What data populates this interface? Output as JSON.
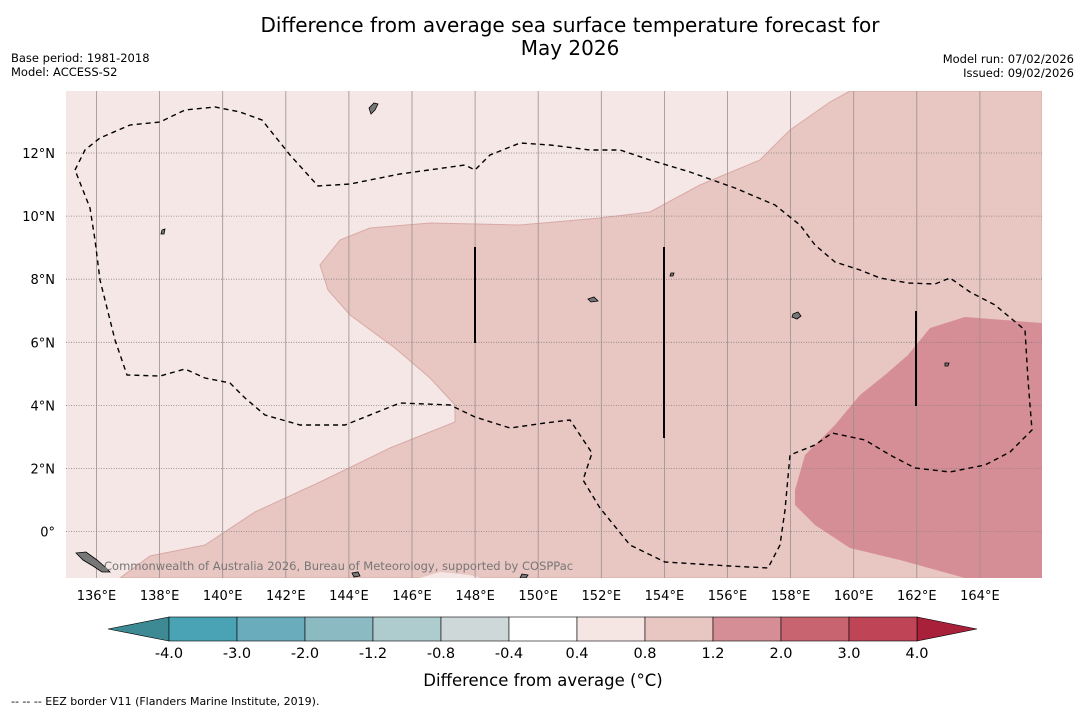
{
  "title_line1": "Difference from average sea surface temperature forecast for",
  "title_line2": "May 2026",
  "base_period": "Base period: 1981-2018",
  "model": "Model: ACCESS-S2",
  "model_run": "Model run: 07/02/2026",
  "issued": "Issued: 09/02/2026",
  "copyright": "Commonwealth of Australia 2026, Bureau of Meteorology, supported by COSPPac",
  "lon_ticks": [
    "136°E",
    "138°E",
    "140°E",
    "142°E",
    "144°E",
    "146°E",
    "148°E",
    "150°E",
    "152°E",
    "154°E",
    "156°E",
    "158°E",
    "160°E",
    "162°E",
    "164°E"
  ],
  "lat_ticks": [
    "12°N",
    "10°N",
    "8°N",
    "6°N",
    "4°N",
    "2°N",
    "0°"
  ],
  "colorbar": {
    "label": "Difference from average (°C)",
    "tick_labels": [
      "-4.0",
      "-3.0",
      "-2.0",
      "-1.2",
      "-0.8",
      "-0.4",
      "0.4",
      "0.8",
      "1.2",
      "2.0",
      "3.0",
      "4.0"
    ],
    "colors": [
      "#4aa3b4",
      "#6aacbb",
      "#8bbac3",
      "#aecbcd",
      "#cfd8d9",
      "#ffffff",
      "#f5e6e4",
      "#e8c6c2",
      "#d58e95",
      "#c7646f",
      "#be4456"
    ],
    "low_extend_color": "#3e8a94",
    "high_extend_color": "#a9203a"
  },
  "colors": {
    "band_0_4_to_0_8": "#f4e7e6",
    "band_0_8_to_1_2": "#e8c6c2",
    "band_1_2_to_2_0": "#d58e95"
  },
  "footer": "--  --  -- EEZ border V11 (Flanders Marine Institute, 2019)."
}
